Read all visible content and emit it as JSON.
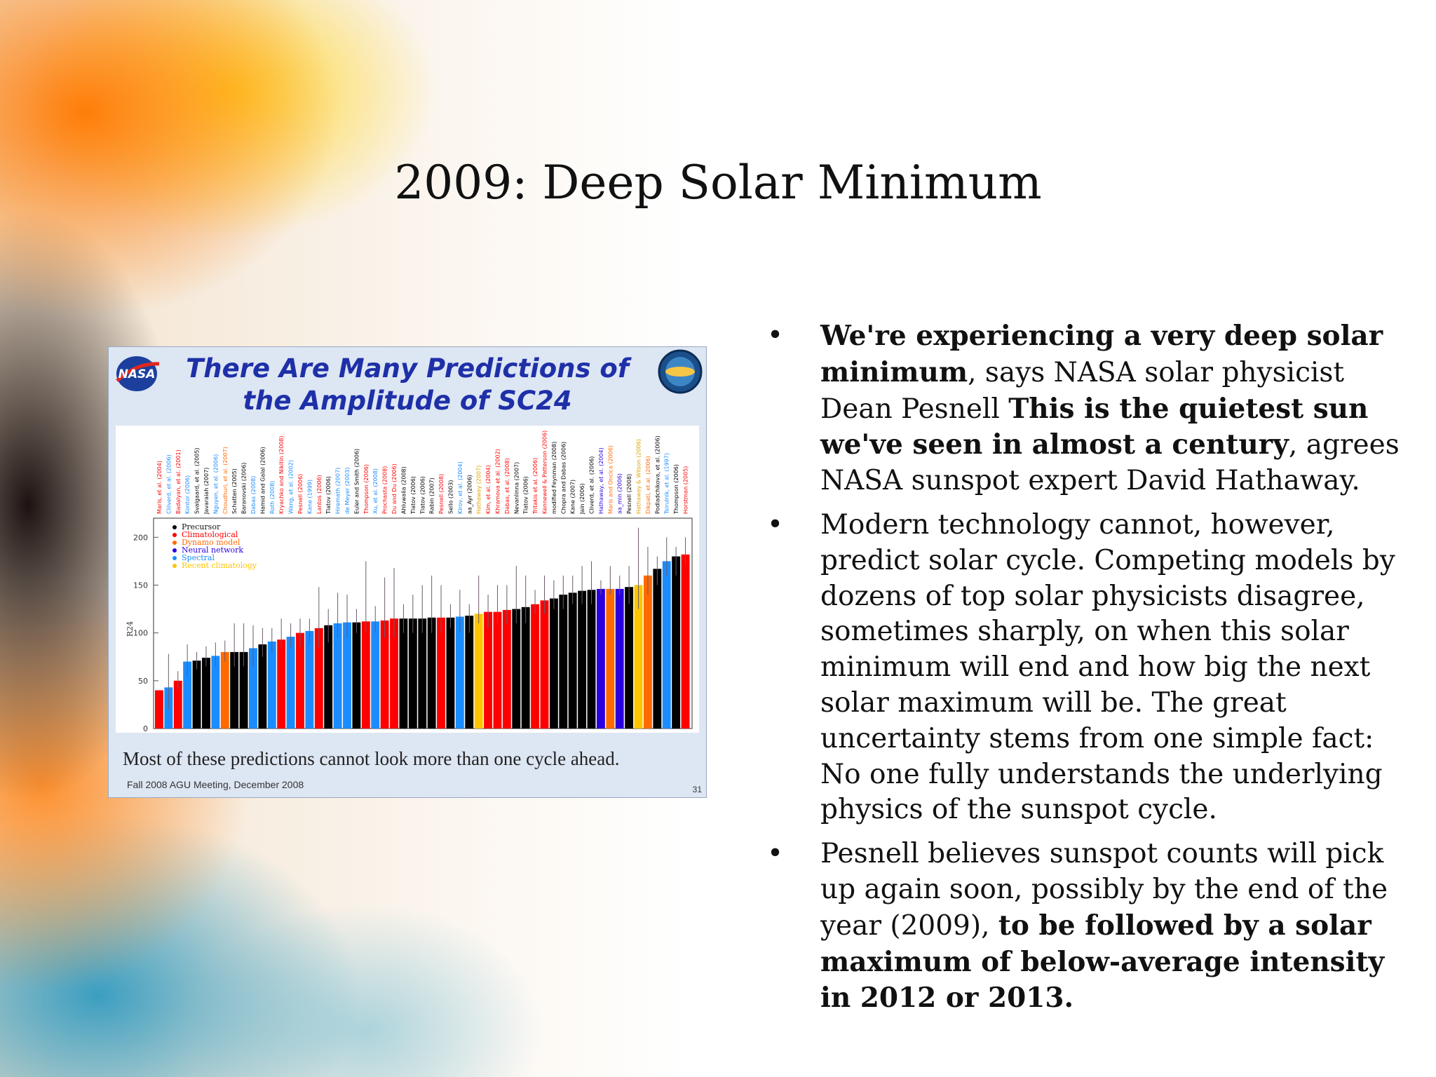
{
  "slide": {
    "title": "2009: Deep Solar Minimum"
  },
  "figure": {
    "title_line1": "There Are Many Predictions of",
    "title_line2": "the Amplitude of SC24",
    "nasa_logo_text": "NASA",
    "caption": "Most of these predictions cannot look more than one cycle ahead.",
    "footer": "Fall 2008 AGU Meeting, December 2008",
    "page_number": "31",
    "colors": {
      "precursor": "#000000",
      "climatological": "#ff0000",
      "dynamo": "#ff6a00",
      "neural": "#2a00e0",
      "spectral": "#1a8cff",
      "recent": "#ffc400"
    }
  },
  "chart_data": {
    "type": "bar",
    "ylabel": "R24",
    "ylim": [
      0,
      220
    ],
    "yticks": [
      "0",
      "50",
      "100",
      "150",
      "200"
    ],
    "legend": {
      "placement": "top-left",
      "entries": [
        {
          "label": "Precursor",
          "color": "#000000"
        },
        {
          "label": "Climatological",
          "color": "#ff0000"
        },
        {
          "label": "Dynamo model",
          "color": "#ff6a00"
        },
        {
          "label": "Neural network",
          "color": "#2a00e0"
        },
        {
          "label": "Spectral",
          "color": "#1a8cff"
        },
        {
          "label": "Recent climatology",
          "color": "#ffc400"
        }
      ]
    },
    "categories": [
      "Maris, et al. (2004)",
      "Clilverd, et al. (2006)",
      "Badalyan, et al. (2001)",
      "Kontor (2006)",
      "Svalgaard, et al. (2005)",
      "Javaraiah (2007)",
      "Nguyen, et al. (2006)",
      "Choudhuri, et al. (2007)",
      "Schatten (2005)",
      "Baranovski (2006)",
      "Dabas (2008)",
      "Hamid and Galal (2006)",
      "Roth (2008)",
      "Kryachko and Nikitin (2008)",
      "Wang, et al. (2002)",
      "Pesnell (2006)",
      "Kane (1999)",
      "Lantos (2006)",
      "Tlatov (2006)",
      "Hiremath (2007)",
      "de Meyer (2003)",
      "Euler and Smith (2006)",
      "Thompson (2006)",
      "Xu, et al. (2008)",
      "Prochasta (2008)",
      "Du and Du (2006)",
      "Ahluwalia (2008)",
      "Tlatov (2006)",
      "Tlatov (2006)",
      "Rabin (2007)",
      "Pesnell (2008)",
      "Sello (2003)",
      "Kirov, et al. (2004)",
      "aa_Ayr (2006)",
      "Hathaway (2007)",
      "Kim, et al. (2004)",
      "Khramova et al. (2002)",
      "Dabas, et al. (2008)",
      "Nevanlinna (2007)",
      "Tlatov (2006)",
      "Tritakis et al. (2006)",
      "Kennewell & Patterson (2006)",
      "modified Feynman (2008)",
      "Chopra and Dabas (2006)",
      "Kane (2007)",
      "Jain (2006)",
      "Cliverd, et al. (2006)",
      "Hathaway, et al. (2004)",
      "Maris and Oncica (2006)",
      "aa_min (2006)",
      "Pesnell (2008)",
      "Hathaway & Wilson (2006)",
      "Dikpati, et al. (2006)",
      "Podladchikova, et al. (2006)",
      "Tsirulnik, et al. (1997)",
      "Thompson (2006)",
      "Horstman (2005)"
    ],
    "values": [
      40,
      43,
      50,
      70,
      71,
      74,
      76,
      80,
      80,
      80,
      84,
      88,
      91,
      93,
      96,
      100,
      102,
      105,
      108,
      110,
      111,
      111,
      112,
      112,
      113,
      115,
      115,
      115,
      115,
      116,
      116,
      116,
      117,
      118,
      120,
      122,
      122,
      124,
      125,
      127,
      130,
      134,
      136,
      140,
      142,
      144,
      145,
      146,
      146,
      146,
      148,
      150,
      160,
      167,
      175,
      180,
      182
    ],
    "series_type": [
      "climatological",
      "spectral",
      "climatological",
      "spectral",
      "precursor",
      "precursor",
      "spectral",
      "dynamo",
      "precursor",
      "precursor",
      "spectral",
      "precursor",
      "spectral",
      "climatological",
      "spectral",
      "climatological",
      "spectral",
      "climatological",
      "precursor",
      "spectral",
      "spectral",
      "precursor",
      "climatological",
      "spectral",
      "climatological",
      "climatological",
      "precursor",
      "precursor",
      "precursor",
      "precursor",
      "climatological",
      "precursor",
      "spectral",
      "precursor",
      "recent",
      "climatological",
      "climatological",
      "climatological",
      "precursor",
      "precursor",
      "climatological",
      "climatological",
      "precursor",
      "precursor",
      "precursor",
      "precursor",
      "precursor",
      "neural",
      "dynamo",
      "neural",
      "precursor",
      "recent",
      "dynamo",
      "precursor",
      "spectral",
      "precursor",
      "climatological"
    ],
    "error_bars": [
      [
        40,
        40
      ],
      [
        20,
        78
      ],
      [
        40,
        60
      ],
      [
        55,
        88
      ],
      [
        62,
        80
      ],
      [
        65,
        86
      ],
      [
        65,
        90
      ],
      [
        70,
        92
      ],
      [
        65,
        110
      ],
      [
        65,
        110
      ],
      [
        65,
        108
      ],
      [
        75,
        105
      ],
      [
        80,
        105
      ],
      [
        85,
        115
      ],
      [
        85,
        110
      ],
      [
        85,
        115
      ],
      [
        90,
        115
      ],
      [
        85,
        148
      ],
      [
        90,
        125
      ],
      [
        95,
        142
      ],
      [
        95,
        140
      ],
      [
        100,
        125
      ],
      [
        100,
        175
      ],
      [
        100,
        128
      ],
      [
        95,
        158
      ],
      [
        95,
        168
      ],
      [
        100,
        130
      ],
      [
        100,
        140
      ],
      [
        100,
        150
      ],
      [
        100,
        160
      ],
      [
        100,
        150
      ],
      [
        105,
        130
      ],
      [
        100,
        145
      ],
      [
        100,
        130
      ],
      [
        110,
        160
      ],
      [
        105,
        140
      ],
      [
        110,
        150
      ],
      [
        110,
        150
      ],
      [
        110,
        170
      ],
      [
        110,
        160
      ],
      [
        120,
        145
      ],
      [
        120,
        160
      ],
      [
        125,
        155
      ],
      [
        125,
        160
      ],
      [
        130,
        160
      ],
      [
        130,
        170
      ],
      [
        130,
        175
      ],
      [
        140,
        155
      ],
      [
        140,
        170
      ],
      [
        140,
        160
      ],
      [
        130,
        170
      ],
      [
        125,
        210
      ],
      [
        140,
        190
      ],
      [
        150,
        180
      ],
      [
        160,
        200
      ],
      [
        160,
        190
      ],
      [
        170,
        200
      ]
    ],
    "x_tick_labels_visible": true
  },
  "bullets": [
    {
      "runs": [
        {
          "text": "We're experiencing a very deep solar minimum",
          "bold": true
        },
        {
          "text": ", says NASA solar physicist Dean Pesnell ",
          "bold": false
        },
        {
          "text": "This is the quietest sun we've seen in almost a century",
          "bold": true
        },
        {
          "text": ", agrees NASA sunspot expert David Hathaway.",
          "bold": false
        }
      ]
    },
    {
      "runs": [
        {
          "text": "Modern technology cannot, however, predict solar cycle. Competing models by dozens of top solar physicists disagree, sometimes sharply, on when this solar minimum will end and how big the next solar maximum will be. The great uncertainty stems from one simple fact: No one fully understands the underlying physics of the sunspot cycle.",
          "bold": false
        }
      ]
    },
    {
      "runs": [
        {
          "text": "Pesnell believes sunspot counts will pick up again soon, possibly by the end of the year (2009), ",
          "bold": false
        },
        {
          "text": "to be followed by a solar maximum of below-average intensity in 2012 or 2013.",
          "bold": true
        }
      ]
    }
  ],
  "bullet_symbol": "•"
}
